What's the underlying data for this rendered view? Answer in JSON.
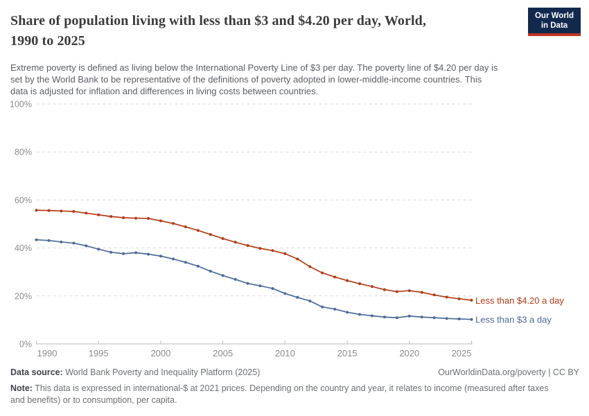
{
  "header": {
    "title_line1": "Share of population living with less than $3 and $4.20 per day, World,",
    "title_line2": "1990 to 2025",
    "logo_line1": "Our World",
    "logo_line2": "in Data",
    "logo_bg_color": "#12294E",
    "logo_accent_color": "#C0341F"
  },
  "subtitle": {
    "line1": "Extreme poverty is defined as living below the International Poverty Line of $3 per day. The poverty line of $4.20 per day is",
    "line2": "set by the World Bank to be representative of the definitions of poverty adopted in lower-middle-income countries. This",
    "line3": "data is adjusted for inflation and differences in living costs between countries."
  },
  "chart_data": {
    "type": "line",
    "title": "Share of population living with less than $3 and $4.20 per day, World, 1990 to 2025",
    "x": [
      1990,
      1991,
      1992,
      1993,
      1994,
      1995,
      1996,
      1997,
      1998,
      1999,
      2000,
      2001,
      2002,
      2003,
      2004,
      2005,
      2006,
      2007,
      2008,
      2009,
      2010,
      2011,
      2012,
      2013,
      2014,
      2015,
      2016,
      2017,
      2018,
      2019,
      2020,
      2021,
      2022,
      2023,
      2024,
      2025
    ],
    "series": [
      {
        "name": "Less than $4.20 a day",
        "color": "#B23B16",
        "values": [
          55.7,
          55.6,
          55.4,
          55.2,
          54.5,
          53.8,
          53.1,
          52.6,
          52.4,
          52.3,
          51.3,
          50.2,
          48.8,
          47.3,
          45.6,
          43.9,
          42.4,
          41.0,
          39.8,
          38.9,
          37.6,
          35.4,
          32.2,
          29.6,
          27.9,
          26.4,
          25.1,
          23.9,
          22.6,
          21.8,
          22.2,
          21.5,
          20.4,
          19.5,
          18.8,
          18.2
        ]
      },
      {
        "name": "Less than $3 a day",
        "color": "#4C6A9C",
        "values": [
          43.4,
          43.1,
          42.5,
          42.0,
          40.9,
          39.5,
          38.2,
          37.6,
          38.0,
          37.4,
          36.6,
          35.4,
          34.0,
          32.4,
          30.3,
          28.5,
          26.9,
          25.2,
          24.2,
          23.1,
          21.0,
          19.4,
          17.9,
          15.4,
          14.5,
          13.2,
          12.3,
          11.7,
          11.2,
          10.9,
          11.6,
          11.2,
          10.9,
          10.6,
          10.4,
          10.2
        ]
      }
    ],
    "xlim": [
      1990,
      2025
    ],
    "ylim": [
      0,
      100
    ],
    "yticks": [
      0,
      20,
      40,
      60,
      80,
      100
    ],
    "ytick_suffix": "%",
    "xticks": [
      1990,
      1995,
      2000,
      2005,
      2010,
      2015,
      2020,
      2025
    ],
    "grid": "horizontal dashed",
    "legend_position": "end-of-line labels",
    "axis_text_color": "#8c8c8c",
    "grid_color": "#dcdcdc",
    "axis_line_color": "#bbbbbb"
  },
  "footer": {
    "source_label": "Data source:",
    "source_value": "World Bank Poverty and Inequality Platform (2025)",
    "url": "OurWorldinData.org/poverty",
    "divider": "|",
    "license": "CC BY",
    "note_label": "Note:",
    "note_line1": "This data is expressed in international-$ at 2021 prices. Depending on the country and year, it relates to income (measured after taxes",
    "note_line2": "and benefits) or to consumption, per capita."
  }
}
